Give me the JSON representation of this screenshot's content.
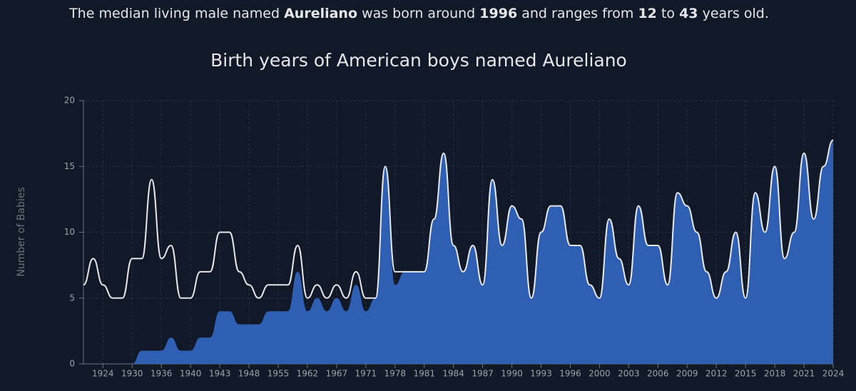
{
  "header": {
    "parts": [
      "The median living male named",
      "Aureliano",
      "was born around",
      "1996",
      "and ranges from",
      "12",
      "to",
      "43",
      "years old."
    ]
  },
  "chart_data": {
    "type": "line",
    "title": "Birth years of American boys named Aureliano",
    "y_label": "Number of Babies",
    "categories": [
      null,
      null,
      1924,
      null,
      null,
      1930,
      null,
      null,
      1936,
      null,
      null,
      1940,
      null,
      null,
      1943,
      null,
      null,
      1948,
      null,
      null,
      1955,
      null,
      null,
      1962,
      null,
      null,
      1967,
      null,
      null,
      1971,
      null,
      null,
      1978,
      null,
      null,
      1981,
      null,
      null,
      1984,
      null,
      null,
      1987,
      null,
      null,
      1990,
      null,
      null,
      1993,
      null,
      null,
      1996,
      null,
      null,
      2000,
      null,
      null,
      2003,
      null,
      null,
      2006,
      null,
      null,
      2009,
      null,
      null,
      2012,
      null,
      null,
      2015,
      null,
      null,
      2018,
      null,
      null,
      2021,
      null,
      null,
      2024
    ],
    "series": [
      {
        "color": "#2f5fb3",
        "fill": true,
        "values": [
          0,
          0,
          0,
          0,
          0,
          0,
          1,
          1,
          1,
          2,
          1,
          1,
          2,
          2,
          4,
          4,
          3,
          3,
          3,
          4,
          4,
          4,
          7,
          4,
          5,
          4,
          5,
          4,
          6,
          4,
          5,
          15,
          6,
          7,
          7,
          7,
          11,
          16,
          9,
          7,
          9,
          6,
          14,
          9,
          12,
          11,
          5,
          10,
          12,
          12,
          9,
          9,
          6,
          5,
          11,
          8,
          6,
          12,
          9,
          9,
          6,
          13,
          12,
          10,
          7,
          5,
          7,
          10,
          5,
          13,
          10,
          15,
          8,
          10,
          16,
          11,
          15,
          17
        ]
      },
      {
        "color": "#e5e7eb",
        "fill": false,
        "values": [
          6,
          8,
          6,
          5,
          5,
          8,
          8,
          14,
          8,
          9,
          5,
          5,
          7,
          7,
          10,
          10,
          7,
          6,
          5,
          6,
          6,
          6,
          9,
          5,
          6,
          5,
          6,
          5,
          7,
          5,
          5,
          15,
          7,
          7,
          7,
          7,
          11,
          16,
          9,
          7,
          9,
          6,
          14,
          9,
          12,
          11,
          5,
          10,
          12,
          12,
          9,
          9,
          6,
          5,
          11,
          8,
          6,
          12,
          9,
          9,
          6,
          13,
          12,
          10,
          7,
          5,
          7,
          10,
          5,
          13,
          10,
          15,
          8,
          10,
          16,
          11,
          15,
          17
        ]
      }
    ],
    "ylim": [
      0,
      20
    ],
    "yticks": [
      0,
      5,
      10,
      15,
      20
    ],
    "grid": true
  }
}
